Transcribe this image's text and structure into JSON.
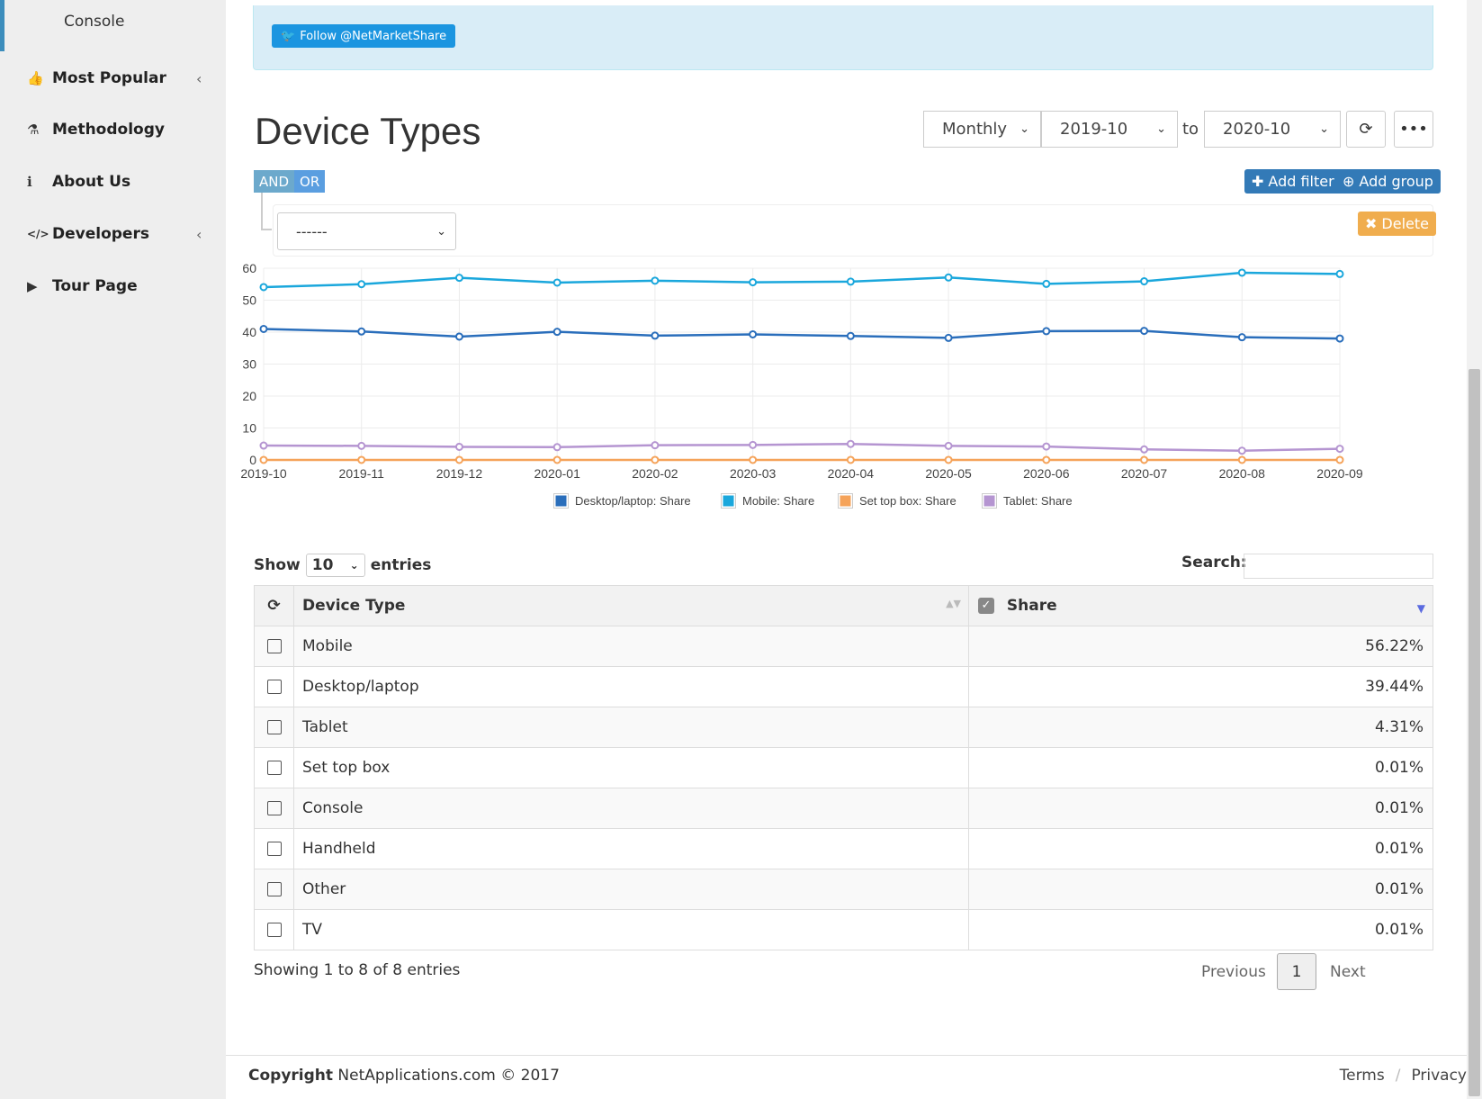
{
  "sidebar": {
    "sub_item": "Console",
    "items": [
      {
        "label": "Most Popular",
        "icon": "thumbs-up-icon",
        "has_submenu": true
      },
      {
        "label": "Methodology",
        "icon": "flask-icon",
        "has_submenu": false
      },
      {
        "label": "About Us",
        "icon": "info-icon",
        "has_submenu": false
      },
      {
        "label": "Developers",
        "icon": "code-icon",
        "has_submenu": true
      },
      {
        "label": "Tour Page",
        "icon": "play-icon",
        "has_submenu": false
      }
    ]
  },
  "twitter": {
    "label": "Follow @NetMarketShare"
  },
  "page_title": "Device Types",
  "filters": {
    "period": "Monthly",
    "from": "2019-10",
    "to_label": "to",
    "to": "2020-10"
  },
  "query_builder": {
    "and_label": "AND",
    "or_label": "OR",
    "add_filter": "Add filter",
    "add_group": "Add group",
    "rule_select": "------",
    "delete": "Delete"
  },
  "chart_data": {
    "type": "line",
    "x": [
      "2019-10",
      "2019-11",
      "2019-12",
      "2020-01",
      "2020-02",
      "2020-03",
      "2020-04",
      "2020-05",
      "2020-06",
      "2020-07",
      "2020-08",
      "2020-09"
    ],
    "ylim": [
      0,
      60
    ],
    "yticks": [
      0,
      10,
      20,
      30,
      40,
      50,
      60
    ],
    "grid": true,
    "legend_position": "bottom",
    "series": [
      {
        "name": "Desktop/laptop: Share",
        "color": "#2a6ebb",
        "values": [
          41.0,
          40.2,
          38.6,
          40.1,
          38.9,
          39.3,
          38.8,
          38.2,
          40.3,
          40.4,
          38.4,
          38.0
        ]
      },
      {
        "name": "Mobile: Share",
        "color": "#1aa7dc",
        "values": [
          54.1,
          55.0,
          57.0,
          55.5,
          56.1,
          55.6,
          55.8,
          57.1,
          55.1,
          55.9,
          58.6,
          58.2
        ]
      },
      {
        "name": "Set top box: Share",
        "color": "#f5a35a",
        "values": [
          0.01,
          0.01,
          0.01,
          0.01,
          0.01,
          0.01,
          0.01,
          0.01,
          0.01,
          0.01,
          0.01,
          0.01
        ]
      },
      {
        "name": "Tablet: Share",
        "color": "#b595d1",
        "values": [
          4.5,
          4.4,
          4.1,
          4.0,
          4.6,
          4.7,
          5.0,
          4.4,
          4.2,
          3.3,
          2.9,
          3.5
        ]
      }
    ]
  },
  "table_controls": {
    "show_label": "Show",
    "entries_value": "10",
    "entries_label": "entries",
    "search_label": "Search:"
  },
  "table": {
    "headers": [
      "Device Type",
      "Share"
    ],
    "rows": [
      {
        "device": "Mobile",
        "share": "56.22%"
      },
      {
        "device": "Desktop/laptop",
        "share": "39.44%"
      },
      {
        "device": "Tablet",
        "share": "4.31%"
      },
      {
        "device": "Set top box",
        "share": "0.01%"
      },
      {
        "device": "Console",
        "share": "0.01%"
      },
      {
        "device": "Handheld",
        "share": "0.01%"
      },
      {
        "device": "Other",
        "share": "0.01%"
      },
      {
        "device": "TV",
        "share": "0.01%"
      }
    ],
    "info": "Showing 1 to 8 of 8 entries",
    "previous": "Previous",
    "page": "1",
    "next": "Next"
  },
  "footer": {
    "copyright_bold": "Copyright",
    "copyright_text": "NetApplications.com © 2017",
    "terms": "Terms",
    "separator": "/",
    "privacy": "Privacy"
  }
}
